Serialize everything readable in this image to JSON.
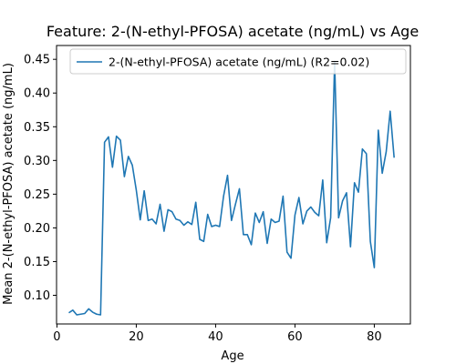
{
  "chart_data": {
    "type": "line",
    "title": "Feature: 2-(N-ethyl-PFOSA) acetate (ng/mL) vs Age",
    "xlabel": "Age",
    "ylabel": "Mean 2-(N-ethyl-PFOSA) acetate (ng/mL)",
    "xlim": [
      -0.1,
      89.1
    ],
    "ylim": [
      0.0575,
      0.4705
    ],
    "xticks": [
      0,
      20,
      40,
      60,
      80
    ],
    "yticks": [
      0.1,
      0.15,
      0.2,
      0.25,
      0.3,
      0.35,
      0.4,
      0.45
    ],
    "xtick_labels": [
      "0",
      "20",
      "40",
      "60",
      "80"
    ],
    "ytick_labels": [
      "0.10",
      "0.15",
      "0.20",
      "0.25",
      "0.30",
      "0.35",
      "0.40",
      "0.45"
    ],
    "grid": false,
    "legend_position": "top",
    "series": [
      {
        "name": "2-(N-ethyl-PFOSA) acetate (ng/mL) (R2=0.02)",
        "color": "#1f77b4",
        "x": [
          3,
          4,
          5,
          6,
          7,
          8,
          9,
          10,
          11,
          12,
          13,
          14,
          15,
          16,
          17,
          18,
          19,
          20,
          21,
          22,
          23,
          24,
          25,
          26,
          27,
          28,
          29,
          30,
          31,
          32,
          33,
          34,
          35,
          36,
          37,
          38,
          39,
          40,
          41,
          42,
          43,
          44,
          45,
          46,
          47,
          48,
          49,
          50,
          51,
          52,
          53,
          54,
          55,
          56,
          57,
          58,
          59,
          60,
          61,
          62,
          63,
          64,
          65,
          66,
          67,
          68,
          69,
          70,
          71,
          72,
          73,
          74,
          75,
          76,
          77,
          78,
          79,
          80,
          81,
          82,
          83,
          84,
          85
        ],
        "y": [
          0.074,
          0.078,
          0.071,
          0.072,
          0.073,
          0.08,
          0.075,
          0.072,
          0.071,
          0.327,
          0.335,
          0.29,
          0.336,
          0.33,
          0.276,
          0.306,
          0.293,
          0.256,
          0.212,
          0.255,
          0.211,
          0.213,
          0.206,
          0.235,
          0.195,
          0.227,
          0.224,
          0.213,
          0.211,
          0.204,
          0.209,
          0.205,
          0.238,
          0.183,
          0.18,
          0.22,
          0.202,
          0.204,
          0.202,
          0.247,
          0.278,
          0.211,
          0.235,
          0.258,
          0.19,
          0.19,
          0.175,
          0.222,
          0.208,
          0.224,
          0.177,
          0.213,
          0.208,
          0.21,
          0.247,
          0.164,
          0.155,
          0.219,
          0.245,
          0.206,
          0.225,
          0.231,
          0.223,
          0.218,
          0.271,
          0.178,
          0.215,
          0.447,
          0.215,
          0.24,
          0.252,
          0.172,
          0.267,
          0.253,
          0.317,
          0.31,
          0.18,
          0.141,
          0.345,
          0.281,
          0.313,
          0.373,
          0.304
        ]
      }
    ]
  }
}
